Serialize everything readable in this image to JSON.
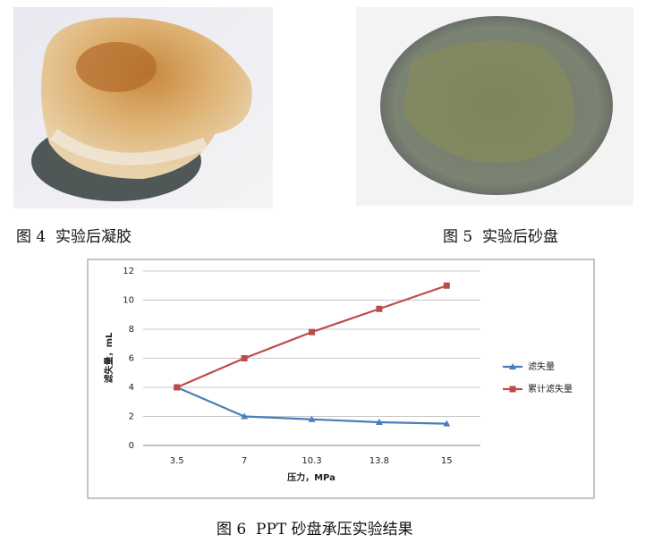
{
  "figures": [
    {
      "caption": "图 4  实验后凝胶"
    },
    {
      "caption": "图 5  实验后砂盘"
    }
  ],
  "chart_caption": "图 6  PPT 砂盘承压实验结果",
  "chart_data": {
    "type": "line",
    "x_label": "压力，MPa",
    "y_label": "滤失量，mL",
    "categories": [
      "3.5",
      "7",
      "10.3",
      "13.8",
      "15"
    ],
    "series": [
      {
        "name": "滤失量",
        "color": "#4a7ebb",
        "marker": "triangle",
        "values": [
          4,
          2,
          1.8,
          1.6,
          1.5
        ]
      },
      {
        "name": "累计滤失量",
        "color": "#be4b48",
        "marker": "square",
        "values": [
          4,
          6,
          7.8,
          9.4,
          11
        ]
      }
    ],
    "ylim": [
      0,
      12
    ],
    "yticks": [
      0,
      2,
      4,
      6,
      8,
      10,
      12
    ],
    "grid": true,
    "legend": "right"
  }
}
